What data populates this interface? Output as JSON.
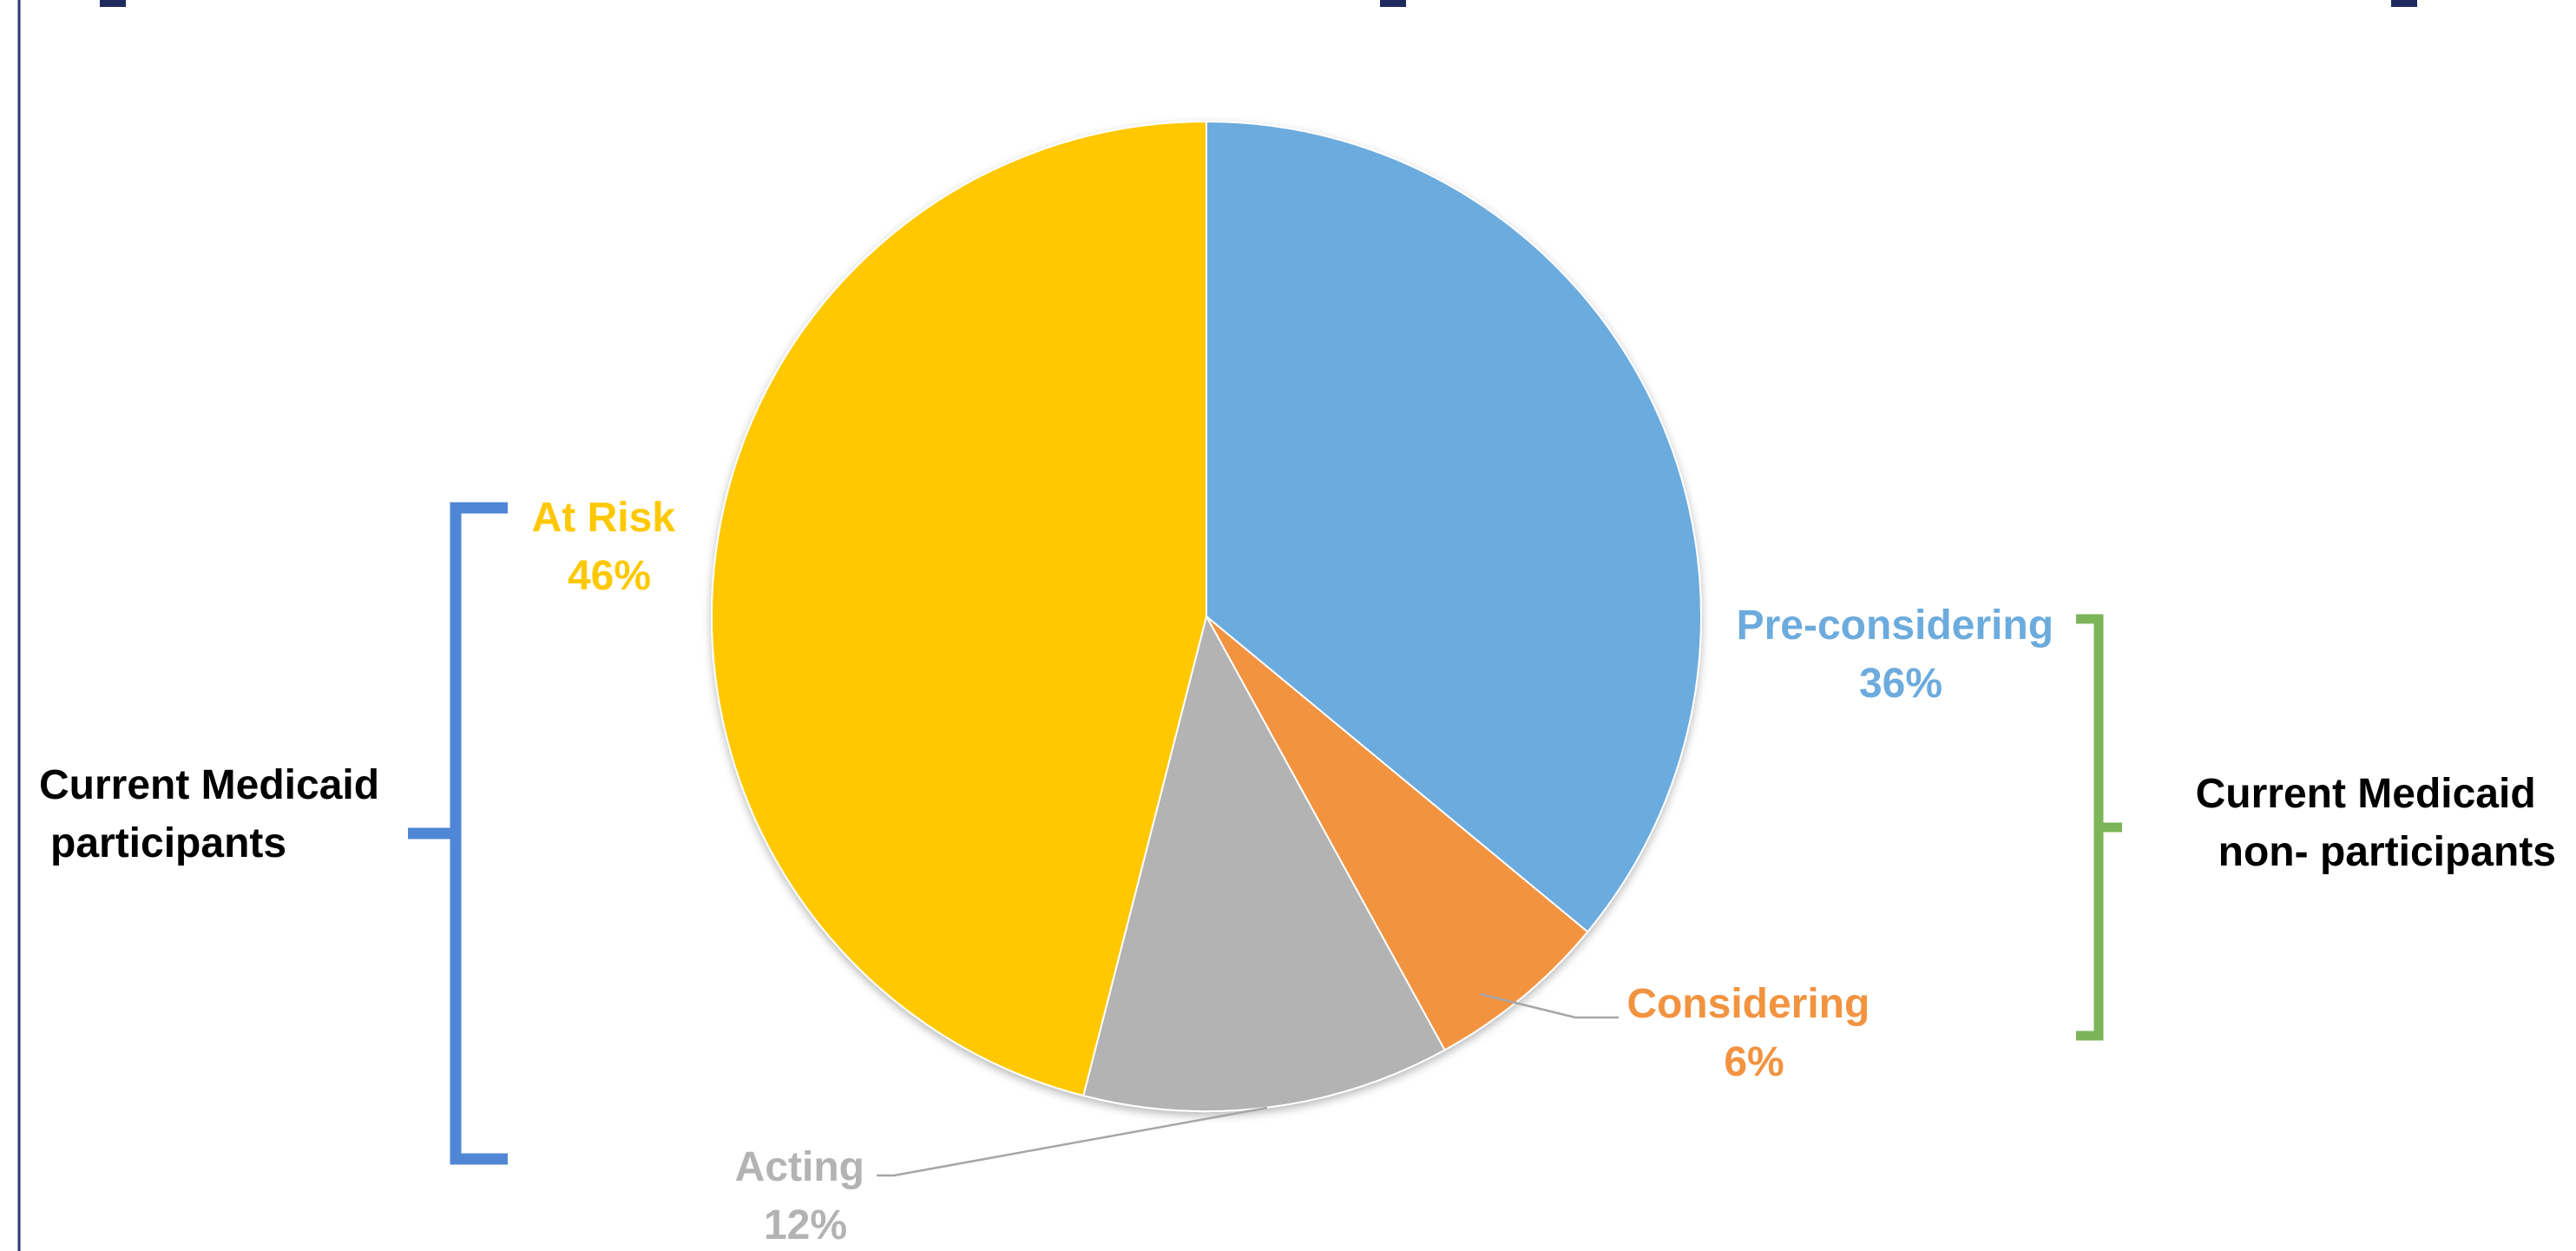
{
  "chart_data": {
    "type": "pie",
    "slices": [
      {
        "label": "Pre-considering",
        "value": 36,
        "display": "36%",
        "color": "#6CABDD"
      },
      {
        "label": "Considering",
        "value": 6,
        "display": "6%",
        "color": "#F29340"
      },
      {
        "label": "Acting",
        "value": 12,
        "display": "12%",
        "color": "#B3B3B3"
      },
      {
        "label": "At Risk",
        "value": 46,
        "display": "46%",
        "color": "#FFC800"
      }
    ],
    "groups": [
      {
        "line1": "Current Medicaid",
        "line2": "participants",
        "color": "#4F86D6"
      },
      {
        "line1": "Current Medicaid",
        "line2": "non- participants",
        "color": "#7CB45A"
      }
    ]
  }
}
